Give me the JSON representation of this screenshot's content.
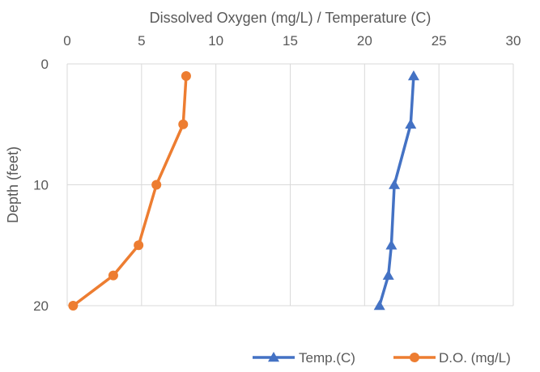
{
  "chart_data": {
    "type": "line",
    "title": "",
    "xlabel": "Dissolved Oxygen (mg/L) / Temperature (C)",
    "ylabel": "Depth (feet)",
    "x_axis_position": "top",
    "y_axis_inverted": true,
    "xlim": [
      0,
      30
    ],
    "ylim": [
      0,
      20
    ],
    "x_ticks": [
      "0",
      "5",
      "10",
      "15",
      "20",
      "25",
      "30"
    ],
    "y_ticks": [
      "0",
      "10",
      "20"
    ],
    "grid": "vertical and horizontal major gridlines",
    "legend_position": "bottom-right",
    "series": [
      {
        "name": "Temp.(C)",
        "color": "#4472C4",
        "marker": "triangle",
        "points": [
          {
            "x": 23.3,
            "y": 1
          },
          {
            "x": 23.1,
            "y": 5
          },
          {
            "x": 22.0,
            "y": 10
          },
          {
            "x": 21.8,
            "y": 15
          },
          {
            "x": 21.6,
            "y": 17.5
          },
          {
            "x": 21.0,
            "y": 20
          }
        ]
      },
      {
        "name": "D.O. (mg/L)",
        "color": "#ED7D31",
        "marker": "circle",
        "points": [
          {
            "x": 8.0,
            "y": 1
          },
          {
            "x": 7.8,
            "y": 5
          },
          {
            "x": 6.0,
            "y": 10
          },
          {
            "x": 4.8,
            "y": 15
          },
          {
            "x": 3.1,
            "y": 17.5
          },
          {
            "x": 0.4,
            "y": 20
          }
        ]
      }
    ]
  }
}
